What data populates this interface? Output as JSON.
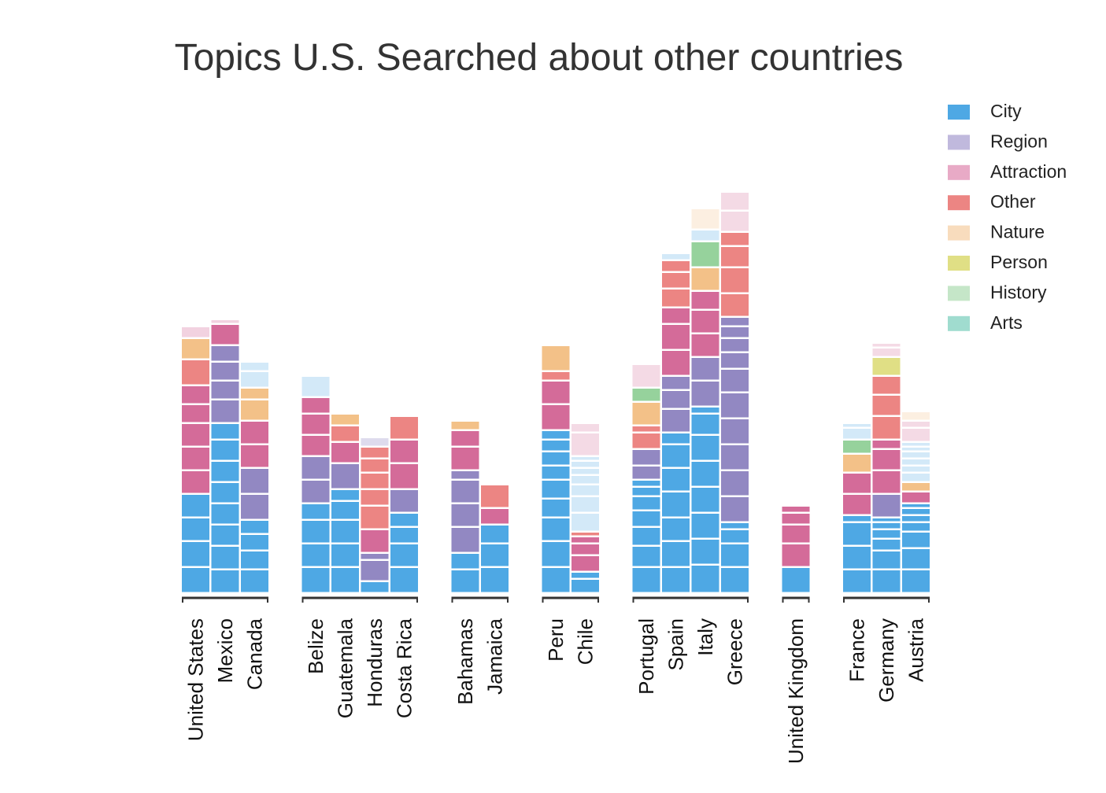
{
  "chart_data": {
    "type": "bar",
    "stacked": true,
    "title": "Topics U.S. Searched about other countries",
    "xlabel": "",
    "ylabel": "",
    "ylim": [
      0,
      20
    ],
    "legend_position": "top-right",
    "grid": false,
    "colors": {
      "City": "#4ea8e4",
      "Region": "#9288c2",
      "Attraction": "#d46b99",
      "Other": "#ec8583",
      "Nature": "#f3c188",
      "Person": "#e0df85",
      "History": "#96d29c",
      "Arts": "#a0dccf"
    },
    "legend": [
      {
        "name": "City",
        "color": "#4ea8e4"
      },
      {
        "name": "Region",
        "color": "#c0b9dd"
      },
      {
        "name": "Attraction",
        "color": "#e8aac6"
      },
      {
        "name": "Other",
        "color": "#ec8583"
      },
      {
        "name": "Nature",
        "color": "#f8dcbd"
      },
      {
        "name": "Person",
        "color": "#e0df85"
      },
      {
        "name": "History",
        "color": "#c5e6c8"
      },
      {
        "name": "Arts",
        "color": "#a0dccf"
      }
    ],
    "groups": [
      [
        "United States",
        "Mexico",
        "Canada"
      ],
      [
        "Belize",
        "Guatemala",
        "Honduras",
        "Costa Rica"
      ],
      [
        "Bahamas",
        "Jamaica"
      ],
      [
        "Peru",
        "Chile"
      ],
      [
        "Portugal",
        "Spain",
        "Italy",
        "Greece"
      ],
      [
        "United Kingdom"
      ],
      [
        "France",
        "Germany",
        "Austria"
      ]
    ],
    "categories": [
      "United States",
      "Mexico",
      "Canada",
      "Belize",
      "Guatemala",
      "Honduras",
      "Costa Rica",
      "Bahamas",
      "Jamaica",
      "Peru",
      "Chile",
      "Portugal",
      "Spain",
      "Italy",
      "Greece",
      "United Kingdom",
      "France",
      "Germany",
      "Austria"
    ],
    "bars": {
      "United States": [
        [
          "City",
          1.1,
          1
        ],
        [
          "City",
          1.1,
          1
        ],
        [
          "City",
          1.0,
          1
        ],
        [
          "City",
          1.0,
          1
        ],
        [
          "Attraction",
          1.0,
          1
        ],
        [
          "Attraction",
          1.0,
          1
        ],
        [
          "Attraction",
          1.0,
          1
        ],
        [
          "Attraction",
          0.8,
          1
        ],
        [
          "Attraction",
          0.8,
          1
        ],
        [
          "Other",
          1.1,
          1
        ],
        [
          "Nature",
          0.9,
          1
        ],
        [
          "Attraction",
          0.5,
          0.3
        ]
      ],
      "Mexico": [
        [
          "City",
          1.0,
          1
        ],
        [
          "City",
          1.0,
          1
        ],
        [
          "City",
          0.9,
          1
        ],
        [
          "City",
          0.9,
          1
        ],
        [
          "City",
          0.9,
          1
        ],
        [
          "City",
          0.9,
          1
        ],
        [
          "City",
          0.9,
          1
        ],
        [
          "City",
          0.7,
          1
        ],
        [
          "Region",
          1.0,
          1
        ],
        [
          "Region",
          0.8,
          1
        ],
        [
          "Region",
          0.8,
          1
        ],
        [
          "Region",
          0.7,
          1
        ],
        [
          "Attraction",
          0.9,
          1
        ],
        [
          "Attraction",
          0.2,
          0.3
        ]
      ],
      "Canada": [
        [
          "City",
          1.0,
          1
        ],
        [
          "City",
          0.8,
          1
        ],
        [
          "City",
          0.7,
          1
        ],
        [
          "City",
          0.6,
          1
        ],
        [
          "Region",
          1.1,
          1
        ],
        [
          "Region",
          1.1,
          1
        ],
        [
          "Attraction",
          1.0,
          1
        ],
        [
          "Attraction",
          1.0,
          1
        ],
        [
          "Nature",
          0.9,
          1
        ],
        [
          "Nature",
          0.5,
          1
        ],
        [
          "City",
          0.7,
          0.25
        ],
        [
          "City",
          0.4,
          0.25
        ]
      ],
      "Belize": [
        [
          "City",
          1.1,
          1
        ],
        [
          "City",
          1.0,
          1
        ],
        [
          "City",
          1.0,
          1
        ],
        [
          "City",
          0.7,
          1
        ],
        [
          "Region",
          1.0,
          1
        ],
        [
          "Region",
          1.0,
          1
        ],
        [
          "Attraction",
          0.9,
          1
        ],
        [
          "Attraction",
          0.9,
          1
        ],
        [
          "Attraction",
          0.7,
          1
        ],
        [
          "City",
          0.9,
          0.25
        ]
      ],
      "Guatemala": [
        [
          "City",
          1.1,
          1
        ],
        [
          "City",
          1.0,
          1
        ],
        [
          "City",
          1.0,
          1
        ],
        [
          "City",
          0.8,
          1
        ],
        [
          "City",
          0.5,
          1
        ],
        [
          "Region",
          1.1,
          1
        ],
        [
          "Attraction",
          0.9,
          1
        ],
        [
          "Other",
          0.7,
          1
        ],
        [
          "Nature",
          0.5,
          1
        ]
      ],
      "Honduras": [
        [
          "City",
          0.5,
          1
        ],
        [
          "Region",
          0.9,
          1
        ],
        [
          "Region",
          0.3,
          1
        ],
        [
          "Attraction",
          1.0,
          1
        ],
        [
          "Other",
          1.0,
          1
        ],
        [
          "Other",
          0.7,
          1
        ],
        [
          "Other",
          0.7,
          1
        ],
        [
          "Other",
          0.6,
          1
        ],
        [
          "Other",
          0.5,
          1
        ],
        [
          "Region",
          0.4,
          0.3
        ]
      ],
      "Costa Rica": [
        [
          "City",
          1.1,
          1
        ],
        [
          "City",
          1.0,
          1
        ],
        [
          "City",
          0.7,
          1
        ],
        [
          "City",
          0.6,
          1
        ],
        [
          "Region",
          1.0,
          1
        ],
        [
          "Attraction",
          1.1,
          1
        ],
        [
          "Attraction",
          1.0,
          1
        ],
        [
          "Other",
          1.0,
          1
        ]
      ],
      "Bahamas": [
        [
          "City",
          1.0,
          1
        ],
        [
          "City",
          0.7,
          1
        ],
        [
          "Region",
          1.1,
          1
        ],
        [
          "Region",
          1.0,
          1
        ],
        [
          "Region",
          1.0,
          1
        ],
        [
          "Region",
          0.4,
          1
        ],
        [
          "Attraction",
          1.0,
          1
        ],
        [
          "Attraction",
          0.7,
          1
        ],
        [
          "Nature",
          0.4,
          1
        ]
      ],
      "Jamaica": [
        [
          "City",
          1.1,
          1
        ],
        [
          "City",
          1.0,
          1
        ],
        [
          "City",
          0.8,
          1
        ],
        [
          "Attraction",
          0.7,
          1
        ],
        [
          "Other",
          1.0,
          1
        ]
      ],
      "Peru": [
        [
          "City",
          1.1,
          1
        ],
        [
          "City",
          1.1,
          1
        ],
        [
          "City",
          1.0,
          1
        ],
        [
          "City",
          0.8,
          1
        ],
        [
          "City",
          0.8,
          1
        ],
        [
          "City",
          0.6,
          1
        ],
        [
          "City",
          0.6,
          1
        ],
        [
          "City",
          0.5,
          1
        ],
        [
          "City",
          0.4,
          1
        ],
        [
          "Attraction",
          1.1,
          1
        ],
        [
          "Attraction",
          1.0,
          1
        ],
        [
          "Other",
          0.4,
          1
        ],
        [
          "Nature",
          1.1,
          1
        ]
      ],
      "Chile": [
        [
          "City",
          0.6,
          1
        ],
        [
          "City",
          0.3,
          1
        ],
        [
          "Attraction",
          0.7,
          1
        ],
        [
          "Attraction",
          0.5,
          1
        ],
        [
          "Attraction",
          0.3,
          1
        ],
        [
          "Other",
          0.2,
          1
        ],
        [
          "City",
          0.8,
          0.25
        ],
        [
          "City",
          0.7,
          0.25
        ],
        [
          "City",
          0.5,
          0.25
        ],
        [
          "City",
          0.4,
          0.25
        ],
        [
          "City",
          0.3,
          0.25
        ],
        [
          "City",
          0.3,
          0.25
        ],
        [
          "City",
          0.2,
          0.25
        ],
        [
          "Attraction",
          1.0,
          0.25
        ],
        [
          "Attraction",
          0.4,
          0.25
        ]
      ],
      "Portugal": [
        [
          "City",
          1.1,
          1
        ],
        [
          "City",
          0.9,
          1
        ],
        [
          "City",
          0.8,
          1
        ],
        [
          "City",
          0.7,
          1
        ],
        [
          "City",
          0.6,
          1
        ],
        [
          "City",
          0.4,
          1
        ],
        [
          "City",
          0.3,
          1
        ],
        [
          "Region",
          0.6,
          1
        ],
        [
          "Region",
          0.7,
          1
        ],
        [
          "Other",
          0.7,
          1
        ],
        [
          "Other",
          0.3,
          1
        ],
        [
          "Nature",
          1.0,
          1
        ],
        [
          "History",
          0.6,
          1
        ],
        [
          "Attraction",
          1.0,
          0.25
        ]
      ],
      "Spain": [
        [
          "City",
          1.1,
          1
        ],
        [
          "City",
          1.1,
          1
        ],
        [
          "City",
          1.0,
          1
        ],
        [
          "City",
          1.1,
          1
        ],
        [
          "City",
          1.0,
          1
        ],
        [
          "City",
          1.0,
          1
        ],
        [
          "City",
          0.5,
          1
        ],
        [
          "Region",
          1.0,
          1
        ],
        [
          "Region",
          0.8,
          1
        ],
        [
          "Region",
          0.6,
          1
        ],
        [
          "Attraction",
          1.1,
          1
        ],
        [
          "Attraction",
          1.1,
          1
        ],
        [
          "Attraction",
          0.7,
          1
        ],
        [
          "Other",
          0.8,
          1
        ],
        [
          "Other",
          0.7,
          1
        ],
        [
          "Other",
          0.5,
          1
        ],
        [
          "City",
          0.3,
          0.25
        ]
      ],
      "Italy": [
        [
          "City",
          1.2,
          1
        ],
        [
          "City",
          1.1,
          1
        ],
        [
          "City",
          1.1,
          1
        ],
        [
          "City",
          1.1,
          1
        ],
        [
          "City",
          1.1,
          1
        ],
        [
          "City",
          1.1,
          1
        ],
        [
          "City",
          0.9,
          1
        ],
        [
          "City",
          0.3,
          1
        ],
        [
          "Region",
          1.1,
          1
        ],
        [
          "Region",
          1.0,
          1
        ],
        [
          "Attraction",
          1.0,
          1
        ],
        [
          "Attraction",
          1.0,
          1
        ],
        [
          "Attraction",
          0.8,
          1
        ],
        [
          "Nature",
          1.0,
          1
        ],
        [
          "History",
          1.1,
          1
        ],
        [
          "City",
          0.5,
          0.25
        ],
        [
          "Nature",
          0.9,
          0.25
        ]
      ],
      "Greece": [
        [
          "City",
          1.1,
          1
        ],
        [
          "City",
          1.0,
          1
        ],
        [
          "City",
          0.6,
          1
        ],
        [
          "City",
          0.3,
          1
        ],
        [
          "Region",
          1.1,
          1
        ],
        [
          "Region",
          1.1,
          1
        ],
        [
          "Region",
          1.1,
          1
        ],
        [
          "Region",
          1.1,
          1
        ],
        [
          "Region",
          1.1,
          1
        ],
        [
          "Region",
          1.0,
          1
        ],
        [
          "Region",
          0.7,
          1
        ],
        [
          "Region",
          0.6,
          1
        ],
        [
          "Region",
          0.5,
          1
        ],
        [
          "Region",
          0.4,
          1
        ],
        [
          "Other",
          1.0,
          1
        ],
        [
          "Other",
          1.1,
          1
        ],
        [
          "Other",
          0.9,
          1
        ],
        [
          "Other",
          0.6,
          1
        ],
        [
          "Attraction",
          0.9,
          0.25
        ],
        [
          "Attraction",
          0.8,
          0.25
        ]
      ],
      "United Kingdom": [
        [
          "City",
          1.1,
          1
        ],
        [
          "Attraction",
          1.0,
          1
        ],
        [
          "Attraction",
          0.8,
          1
        ],
        [
          "Attraction",
          0.5,
          1
        ],
        [
          "Attraction",
          0.3,
          1
        ]
      ],
      "France": [
        [
          "City",
          1.0,
          1
        ],
        [
          "City",
          1.0,
          1
        ],
        [
          "City",
          1.0,
          1
        ],
        [
          "City",
          0.3,
          1
        ],
        [
          "Attraction",
          0.9,
          1
        ],
        [
          "Attraction",
          0.9,
          1
        ],
        [
          "Nature",
          0.8,
          1
        ],
        [
          "History",
          0.6,
          1
        ],
        [
          "City",
          0.5,
          0.25
        ],
        [
          "City",
          0.2,
          0.25
        ]
      ],
      "Germany": [
        [
          "City",
          1.0,
          1
        ],
        [
          "City",
          0.8,
          1
        ],
        [
          "City",
          0.5,
          1
        ],
        [
          "City",
          0.4,
          1
        ],
        [
          "City",
          0.3,
          1
        ],
        [
          "City",
          0.2,
          1
        ],
        [
          "Region",
          1.0,
          1
        ],
        [
          "Attraction",
          1.0,
          1
        ],
        [
          "Attraction",
          0.9,
          1
        ],
        [
          "Attraction",
          0.4,
          1
        ],
        [
          "Other",
          1.0,
          1
        ],
        [
          "Other",
          0.9,
          1
        ],
        [
          "Other",
          0.8,
          1
        ],
        [
          "Person",
          0.8,
          1
        ],
        [
          "Attraction",
          0.4,
          0.25
        ],
        [
          "Attraction",
          0.2,
          0.25
        ]
      ],
      "Austria": [
        [
          "City",
          1.0,
          1
        ],
        [
          "City",
          0.9,
          1
        ],
        [
          "City",
          0.7,
          1
        ],
        [
          "City",
          0.4,
          1
        ],
        [
          "City",
          0.3,
          1
        ],
        [
          "City",
          0.3,
          1
        ],
        [
          "City",
          0.2,
          1
        ],
        [
          "Attraction",
          0.5,
          1
        ],
        [
          "Nature",
          0.4,
          1
        ],
        [
          "City",
          0.4,
          0.25
        ],
        [
          "City",
          0.3,
          0.25
        ],
        [
          "City",
          0.3,
          0.25
        ],
        [
          "City",
          0.3,
          0.25
        ],
        [
          "City",
          0.2,
          0.25
        ],
        [
          "City",
          0.2,
          0.25
        ],
        [
          "Attraction",
          0.6,
          0.25
        ],
        [
          "Attraction",
          0.3,
          0.25
        ],
        [
          "Nature",
          0.4,
          0.25
        ]
      ]
    }
  }
}
